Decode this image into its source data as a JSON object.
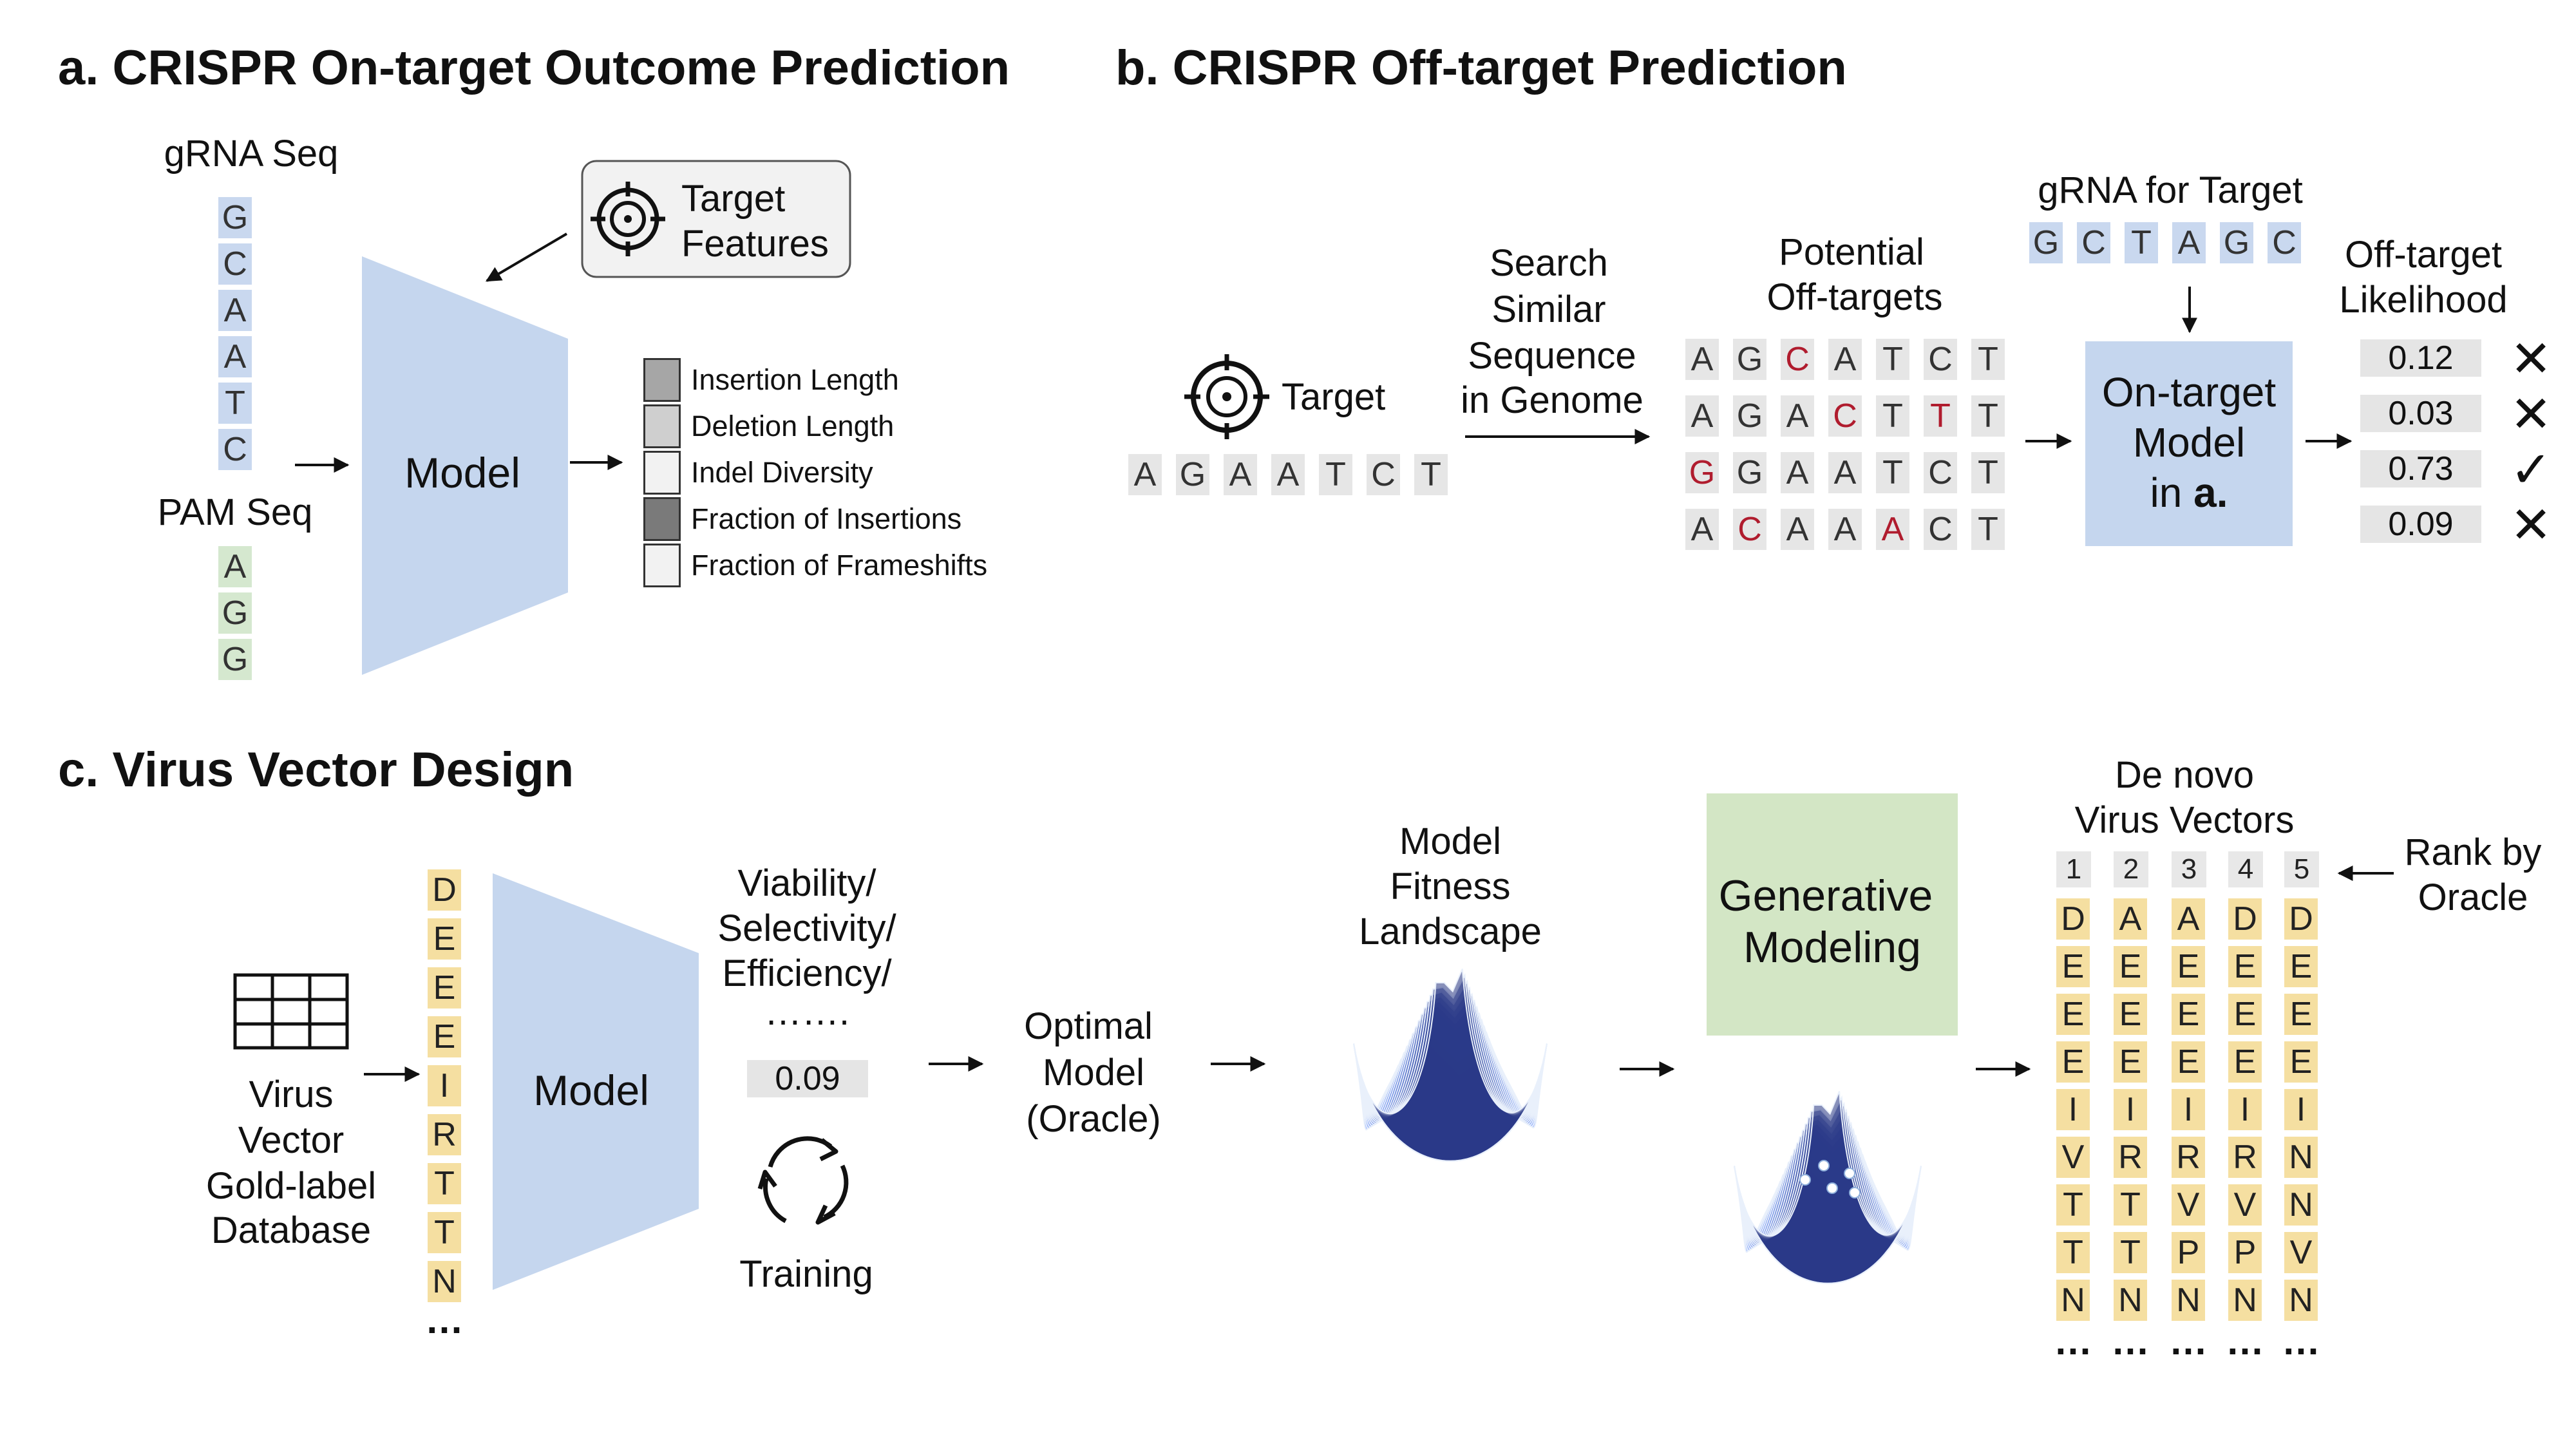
{
  "panel_a": {
    "title": "a. CRISPR On-target Outcome Prediction",
    "grna_label": "gRNA Seq",
    "grna_seq": [
      "G",
      "C",
      "A",
      "A",
      "T",
      "C"
    ],
    "pam_label": "PAM Seq",
    "pam_seq": [
      "A",
      "G",
      "G"
    ],
    "model_label": "Model",
    "target_features": [
      "Target",
      "Features"
    ],
    "outputs": [
      {
        "label": "Insertion Length",
        "shade": "#a6a6a6"
      },
      {
        "label": "Deletion Length",
        "shade": "#cfcfcf"
      },
      {
        "label": "Indel Diversity",
        "shade": "#f2f2f2"
      },
      {
        "label": "Fraction of Insertions",
        "shade": "#7a7a7a"
      },
      {
        "label": "Fraction of Frameshifts",
        "shade": "#f2f2f2"
      }
    ]
  },
  "panel_b": {
    "title": "b. CRISPR Off-target Prediction",
    "target_label": "Target",
    "target_seq": [
      "A",
      "G",
      "A",
      "A",
      "T",
      "C",
      "T"
    ],
    "search_label": [
      "Search",
      "Similar",
      "Sequence",
      "in Genome"
    ],
    "potential_label": [
      "Potential",
      "Off-targets"
    ],
    "offtargets": [
      {
        "seq": [
          "A",
          "G",
          "C",
          "A",
          "T",
          "C",
          "T"
        ],
        "mismatch": [
          2
        ]
      },
      {
        "seq": [
          "A",
          "G",
          "A",
          "C",
          "T",
          "T",
          "T"
        ],
        "mismatch": [
          3,
          5
        ]
      },
      {
        "seq": [
          "G",
          "G",
          "A",
          "A",
          "T",
          "C",
          "T"
        ],
        "mismatch": [
          0
        ]
      },
      {
        "seq": [
          "A",
          "C",
          "A",
          "A",
          "A",
          "C",
          "T"
        ],
        "mismatch": [
          1,
          4
        ]
      }
    ],
    "grna_label": "gRNA for Target",
    "grna_seq": [
      "G",
      "C",
      "T",
      "A",
      "G",
      "C"
    ],
    "ontarget_model": [
      "On-target",
      "Model"
    ],
    "ontarget_ref_prefix": "in ",
    "ontarget_ref": "a.",
    "likelihood_label": [
      "Off-target",
      "Likelihood"
    ],
    "likelihoods": [
      {
        "value": "0.12",
        "pass": false
      },
      {
        "value": "0.03",
        "pass": false
      },
      {
        "value": "0.73",
        "pass": true
      },
      {
        "value": "0.09",
        "pass": false
      }
    ],
    "mismatch_color": "#b01c2e"
  },
  "panel_c": {
    "title": "c. Virus Vector Design",
    "database_label": [
      "Virus",
      "Vector",
      "Gold-label",
      "Database"
    ],
    "input_seq": [
      "D",
      "E",
      "E",
      "E",
      "I",
      "R",
      "T",
      "T",
      "N"
    ],
    "ellipsis": "…",
    "model_label": "Model",
    "metrics_label": [
      "Viability/",
      "Selectivity/",
      "Efficiency/",
      "……."
    ],
    "score": "0.09",
    "training_label": "Training",
    "oracle_label": [
      "Optimal",
      "Model",
      "(Oracle)"
    ],
    "landscape_label": [
      "Model",
      "Fitness",
      "Landscape"
    ],
    "generative_label": [
      "Generative",
      "Modeling"
    ],
    "denovo_label": [
      "De novo",
      "Virus Vectors"
    ],
    "rank_label": [
      "Rank by",
      "Oracle"
    ],
    "candidate_numbers": [
      "1",
      "2",
      "3",
      "4",
      "5"
    ],
    "candidates": [
      [
        "D",
        "E",
        "E",
        "E",
        "I",
        "V",
        "T",
        "T",
        "N"
      ],
      [
        "A",
        "E",
        "E",
        "E",
        "I",
        "R",
        "T",
        "T",
        "N"
      ],
      [
        "A",
        "E",
        "E",
        "E",
        "I",
        "R",
        "V",
        "P",
        "N"
      ],
      [
        "D",
        "E",
        "E",
        "E",
        "I",
        "R",
        "V",
        "P",
        "N"
      ],
      [
        "D",
        "E",
        "E",
        "E",
        "I",
        "N",
        "N",
        "V",
        "N"
      ]
    ],
    "candidate_ellipsis": "…"
  },
  "colors": {
    "model_fill": "#c5d6ee",
    "generative_fill": "#d3e6c5",
    "landscape_blue": "#3a6db4"
  }
}
